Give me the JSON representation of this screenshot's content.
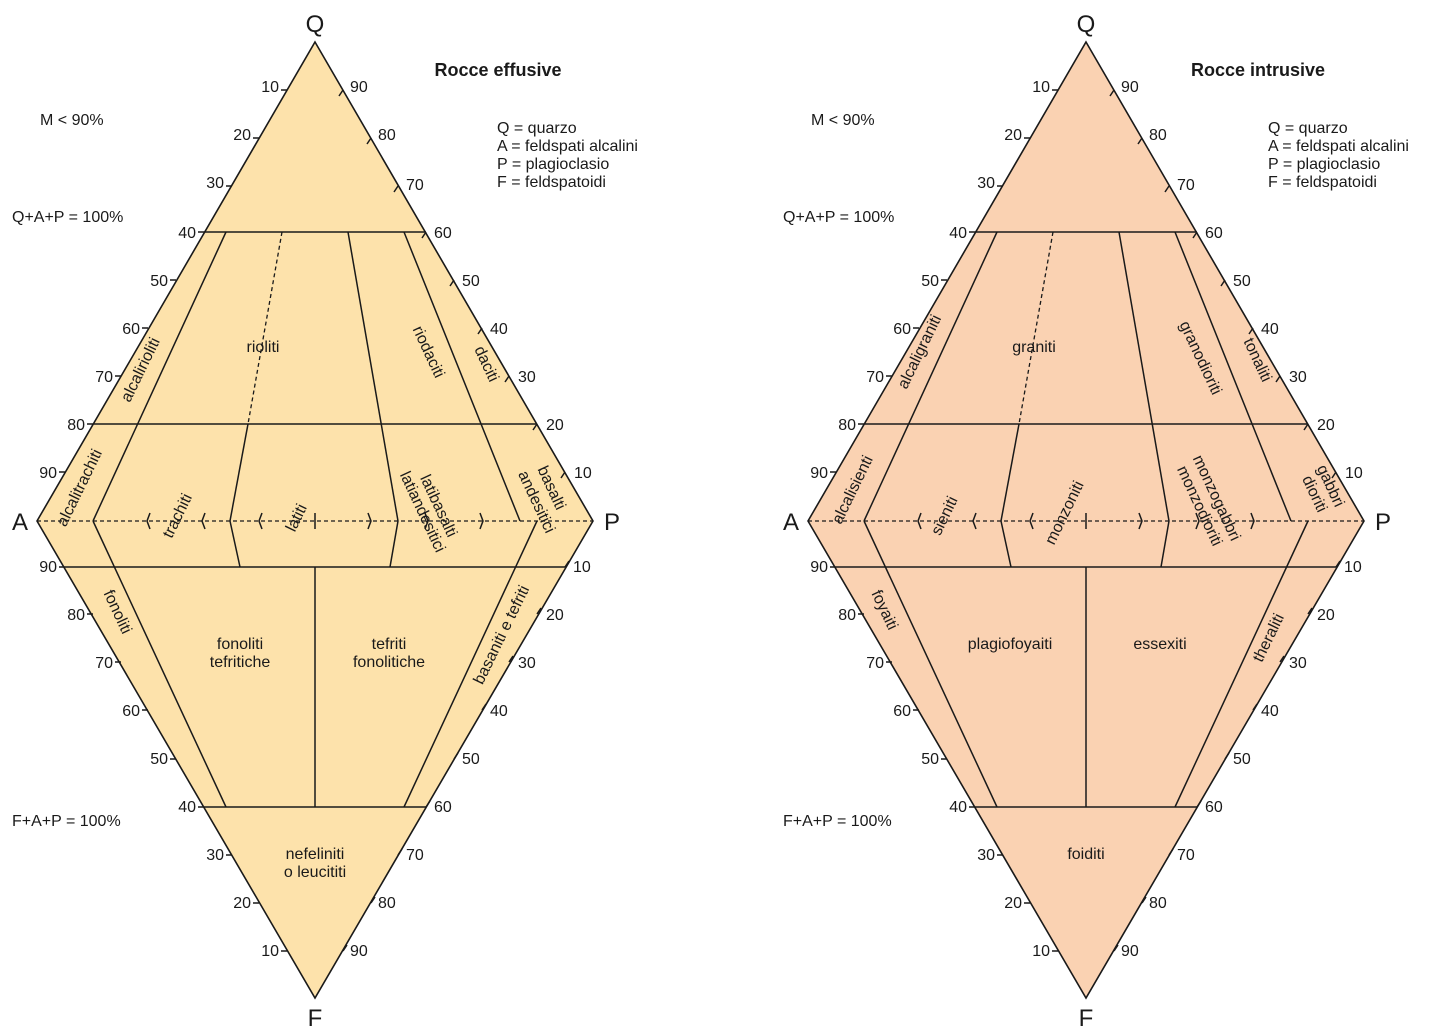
{
  "colors": {
    "effusive_fill": "#fde2ab",
    "intrusive_fill": "#fad2b2",
    "line": "#1a1a1a"
  },
  "vertices": {
    "q": "Q",
    "a": "A",
    "p": "P",
    "f": "F"
  },
  "notes": {
    "m": "M < 90%",
    "qap": "Q+A+P = 100%",
    "fap": "F+A+P = 100%"
  },
  "legend": [
    "Q = quarzo",
    "A = feldspati alcalini",
    "P = plagioclasio",
    "F = feldspatoidi"
  ],
  "ticks": {
    "upper_left": [
      "10",
      "20",
      "30",
      "40",
      "50",
      "60",
      "70",
      "80",
      "90"
    ],
    "upper_right": [
      "90",
      "80",
      "70",
      "60",
      "50",
      "40",
      "30",
      "20",
      "10"
    ],
    "lower_left": [
      "90",
      "80",
      "70",
      "60",
      "50",
      "40",
      "30",
      "20",
      "10"
    ],
    "lower_right": [
      "10",
      "20",
      "30",
      "40",
      "50",
      "60",
      "70",
      "80",
      "90"
    ]
  },
  "diagrams": [
    {
      "title": "Rocce effusive",
      "fields": {
        "rioliti": "rioliti",
        "alcalirioliti": "alcalirioliti",
        "riodaciti": "riodaciti",
        "daciti": "daciti",
        "alcalitrachiti": "alcalitrachiti",
        "trachiti": "trachiti",
        "latiti": "latiti",
        "lati_l1": "latibasalti",
        "lati_l2": "latiandesitici",
        "bas_l1": "basalti",
        "bas_l2": "andesitici",
        "fonoliti": "fonoliti",
        "ft_l1": "fonoliti",
        "ft_l2": "tefritiche",
        "tf_l1": "tefriti",
        "tf_l2": "fonolitiche",
        "basaniti": "basaniti e tefriti",
        "nef_l1": "nefeliniti",
        "nef_l2": "o leucititi"
      }
    },
    {
      "title": "Rocce intrusive",
      "fields": {
        "graniti": "graniti",
        "alcaligraniti": "alcaligraniti",
        "granodioriti": "granodioriti",
        "tonaliti": "tonaliti",
        "alcalisienti": "alcalisienti",
        "sieniti": "sieniti",
        "monzoniti": "monzoniti",
        "mg_l1": "monzogabbri",
        "mg_l2": "monzodioriti",
        "gd_l1": "gabbri",
        "gd_l2": "dioriti",
        "foyaiti": "foyaiti",
        "plagiofoyaiti": "plagiofoyaiti",
        "essexiti": "essexiti",
        "theraliti": "theraliti",
        "foiditi": "foiditi"
      }
    }
  ]
}
